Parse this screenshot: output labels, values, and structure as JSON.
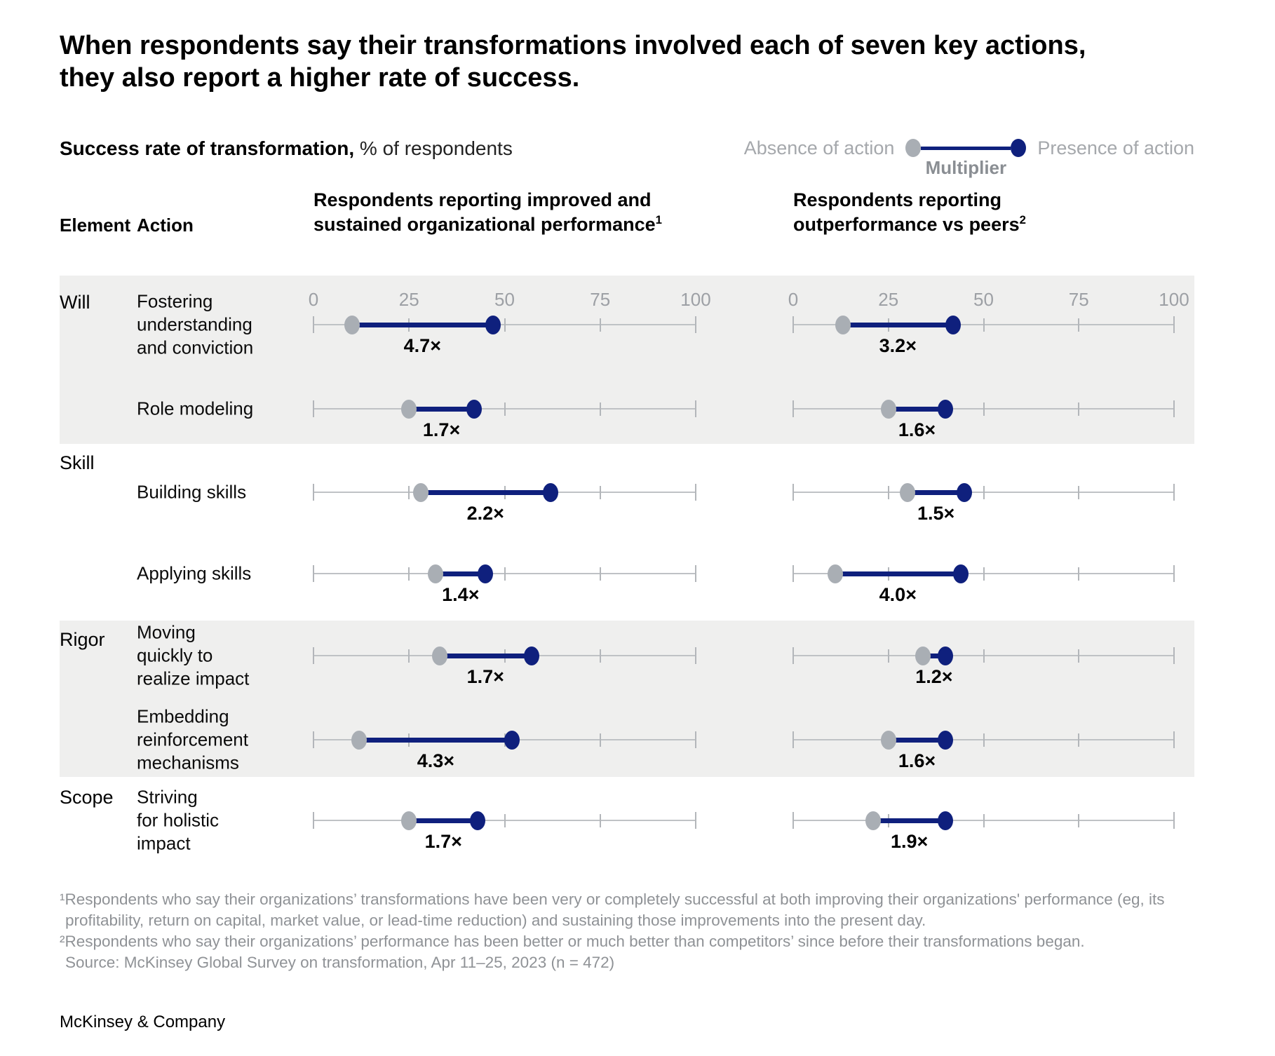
{
  "title": "When respondents say their transformations involved each of seven key actions, they also report a higher rate of success.",
  "subtitle": {
    "bold": "Success rate of transformation,",
    "rest": " % of respondents"
  },
  "table_headers": {
    "element": "Element",
    "action": "Action"
  },
  "footnotes": [
    "¹Respondents who say their organizations’ transformations have been very or completely successful at both improving their organizations' performance (eg, its",
    "profitability, return on capital, market value, or lead-time reduction) and sustaining those improvements into the present day.",
    "²Respondents who say their organizations’ performance has been better or much better than competitors’ since before their transformations began."
  ],
  "source": "Source: McKinsey Global Survey on transformation, Apr 11–25, 2023 (n = 472)",
  "brand": "McKinsey & Company",
  "chart_data": {
    "type": "dumbbell",
    "unit": "% of respondents",
    "axis": {
      "min": 0,
      "max": 100,
      "ticks": [
        0,
        25,
        50,
        75,
        100
      ]
    },
    "legend": {
      "absence": "Absence of action",
      "presence": "Presence of action",
      "multiplier_label": "Multiplier"
    },
    "colors": {
      "absence": "#a9aeb4",
      "presence": "#0f207d",
      "band": "#efefee"
    },
    "columns": [
      {
        "key": "improved",
        "header": "Respondents reporting improved and sustained organizational performance",
        "footnote_mark": "1"
      },
      {
        "key": "outperformance",
        "header": "Respondents reporting outperformance vs peers",
        "footnote_mark": "2"
      }
    ],
    "rows": [
      {
        "element": "Will",
        "action": "Fostering understanding and conviction",
        "action_lines": [
          "Fostering",
          "understanding",
          "and conviction"
        ],
        "improved": {
          "absence": 10,
          "presence": 47,
          "multiplier": "4.7×"
        },
        "outperformance": {
          "absence": 13,
          "presence": 42,
          "multiplier": "3.2×"
        }
      },
      {
        "element": "",
        "action": "Role modeling",
        "action_lines": [
          "Role modeling"
        ],
        "improved": {
          "absence": 25,
          "presence": 42,
          "multiplier": "1.7×"
        },
        "outperformance": {
          "absence": 25,
          "presence": 40,
          "multiplier": "1.6×"
        }
      },
      {
        "element": "Skill",
        "action": "Building skills",
        "action_lines": [
          "Building skills"
        ],
        "improved": {
          "absence": 28,
          "presence": 62,
          "multiplier": "2.2×"
        },
        "outperformance": {
          "absence": 30,
          "presence": 45,
          "multiplier": "1.5×"
        }
      },
      {
        "element": "",
        "action": "Applying skills",
        "action_lines": [
          "Applying skills"
        ],
        "improved": {
          "absence": 32,
          "presence": 45,
          "multiplier": "1.4×"
        },
        "outperformance": {
          "absence": 11,
          "presence": 44,
          "multiplier": "4.0×"
        }
      },
      {
        "element": "Rigor",
        "action": "Moving quickly to realize impact",
        "action_lines": [
          "Moving",
          "quickly to",
          "realize impact"
        ],
        "improved": {
          "absence": 33,
          "presence": 57,
          "multiplier": "1.7×"
        },
        "outperformance": {
          "absence": 34,
          "presence": 40,
          "multiplier": "1.2×"
        }
      },
      {
        "element": "",
        "action": "Embedding reinforcement mechanisms",
        "action_lines": [
          "Embedding",
          "reinforcement",
          "mechanisms"
        ],
        "improved": {
          "absence": 12,
          "presence": 52,
          "multiplier": "4.3×"
        },
        "outperformance": {
          "absence": 25,
          "presence": 40,
          "multiplier": "1.6×"
        }
      },
      {
        "element": "Scope",
        "action": "Striving for holistic impact",
        "action_lines": [
          "Striving",
          "for holistic",
          "impact"
        ],
        "improved": {
          "absence": 25,
          "presence": 43,
          "multiplier": "1.7×"
        },
        "outperformance": {
          "absence": 21,
          "presence": 40,
          "multiplier": "1.9×"
        }
      }
    ]
  }
}
